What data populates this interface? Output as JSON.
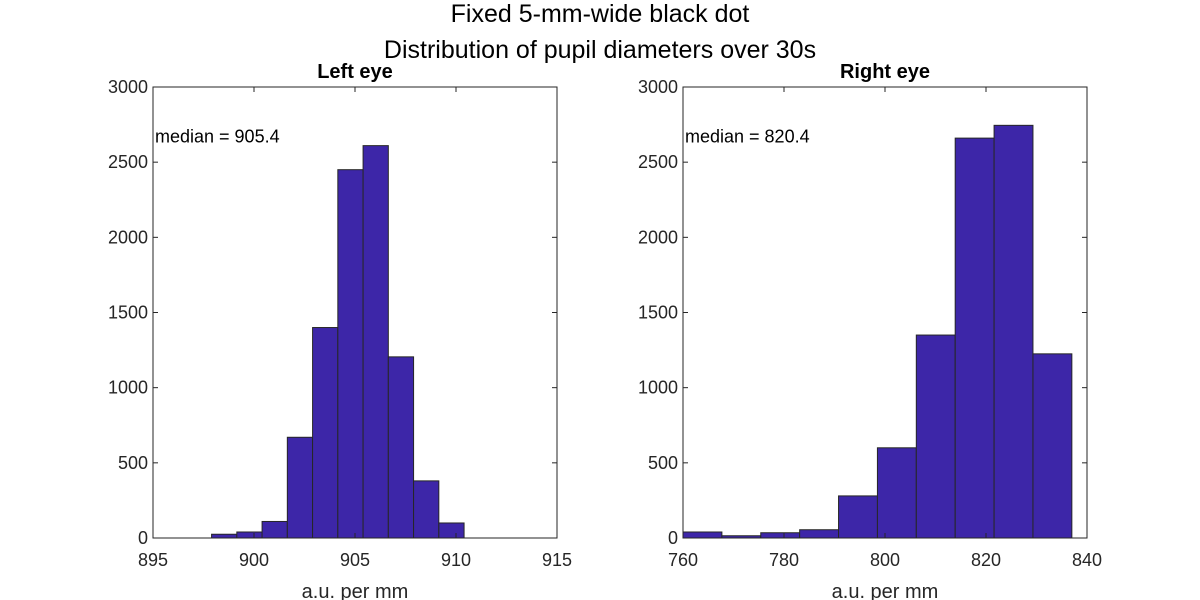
{
  "figure": {
    "title_line1": "Fixed 5-mm-wide black dot",
    "title_line2": "Distribution of pupil diameters over 30s"
  },
  "colors": {
    "bar_fill": "#3d26a8",
    "bar_edge": "#262626",
    "axes": "#262626"
  },
  "chart_data": [
    {
      "type": "bar",
      "title": "Left eye",
      "xlabel": "a.u. per mm",
      "ylabel": "",
      "xlim": [
        895,
        915
      ],
      "ylim": [
        0,
        3000
      ],
      "xticks": [
        895,
        900,
        905,
        910,
        915
      ],
      "yticks": [
        0,
        500,
        1000,
        1500,
        2000,
        2500,
        3000
      ],
      "annotation": "median = 905.4",
      "bin_edges": [
        897.9,
        899.15,
        900.4,
        901.65,
        902.9,
        904.15,
        905.4,
        906.65,
        907.9,
        909.15,
        910.4
      ],
      "values": [
        25,
        40,
        110,
        670,
        1400,
        2450,
        2610,
        1205,
        380,
        100
      ]
    },
    {
      "type": "bar",
      "title": "Right eye",
      "xlabel": "a.u. per mm",
      "ylabel": "",
      "xlim": [
        760,
        840
      ],
      "ylim": [
        0,
        3000
      ],
      "xticks": [
        760,
        780,
        800,
        820,
        840
      ],
      "yticks": [
        0,
        500,
        1000,
        1500,
        2000,
        2500,
        3000
      ],
      "annotation": "median = 820.4",
      "bin_edges": [
        760,
        767.7,
        775.4,
        783.1,
        790.8,
        798.5,
        806.2,
        813.9,
        821.6,
        829.3,
        837
      ],
      "values": [
        40,
        15,
        35,
        55,
        280,
        600,
        1350,
        2660,
        2745,
        1225
      ]
    }
  ]
}
